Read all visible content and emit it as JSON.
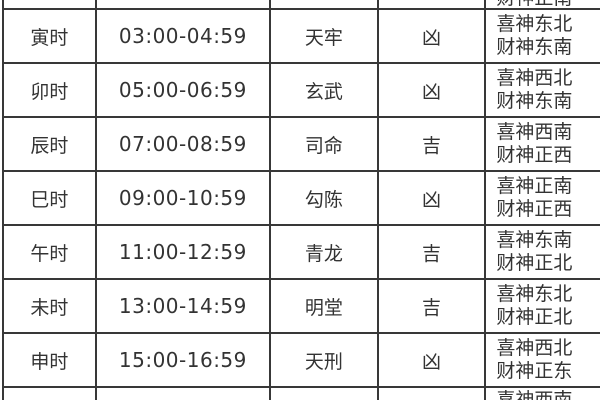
{
  "page": {
    "background": "#ffffff",
    "text_color": "#333333",
    "border_color": "#383838",
    "description": "Chinese almanac hourly fortune table (partial view)"
  },
  "partial_row_top": {
    "direction_line2": "财神正南"
  },
  "rows": [
    {
      "hour": "寅时",
      "time_range": "03:00-04:59",
      "deity": "天牢",
      "luck": "凶",
      "direction_line1": "喜神东北",
      "direction_line2": "财神东南"
    },
    {
      "hour": "卯时",
      "time_range": "05:00-06:59",
      "deity": "玄武",
      "luck": "凶",
      "direction_line1": "喜神西北",
      "direction_line2": "财神东南"
    },
    {
      "hour": "辰时",
      "time_range": "07:00-08:59",
      "deity": "司命",
      "luck": "吉",
      "direction_line1": "喜神西南",
      "direction_line2": "财神正西"
    },
    {
      "hour": "巳时",
      "time_range": "09:00-10:59",
      "deity": "勾陈",
      "luck": "凶",
      "direction_line1": "喜神正南",
      "direction_line2": "财神正西"
    },
    {
      "hour": "午时",
      "time_range": "11:00-12:59",
      "deity": "青龙",
      "luck": "吉",
      "direction_line1": "喜神东南",
      "direction_line2": "财神正北"
    },
    {
      "hour": "未时",
      "time_range": "13:00-14:59",
      "deity": "明堂",
      "luck": "吉",
      "direction_line1": "喜神东北",
      "direction_line2": "财神正北"
    },
    {
      "hour": "申时",
      "time_range": "15:00-16:59",
      "deity": "天刑",
      "luck": "凶",
      "direction_line1": "喜神西北",
      "direction_line2": "财神正东"
    }
  ],
  "partial_row_bottom": {
    "direction_line1": "喜神西南"
  }
}
